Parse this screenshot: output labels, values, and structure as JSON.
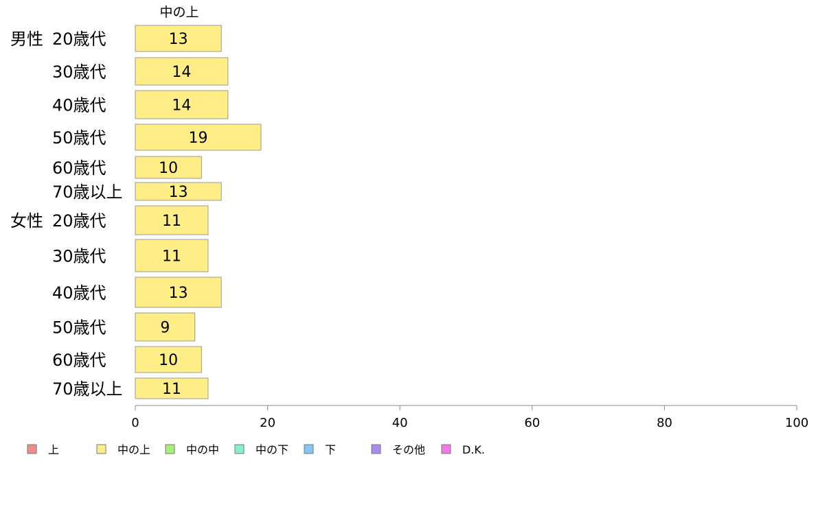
{
  "chart_data": {
    "type": "bar",
    "orientation": "horizontal",
    "series_header": "中の上",
    "groups": [
      {
        "label": "男性",
        "categories": [
          "20歳代",
          "30歳代",
          "40歳代",
          "50歳代",
          "60歳代",
          "70歳以上"
        ],
        "values": [
          13,
          14,
          14,
          19,
          10,
          13
        ]
      },
      {
        "label": "女性",
        "categories": [
          "20歳代",
          "30歳代",
          "40歳代",
          "50歳代",
          "60歳代",
          "70歳以上"
        ],
        "values": [
          11,
          11,
          13,
          9,
          10,
          11
        ]
      }
    ],
    "series": [
      {
        "name": "中の上",
        "color": "#ffee88"
      }
    ],
    "xlim": [
      0,
      100
    ],
    "x_ticks": [
      "0",
      "20",
      "40",
      "60",
      "80",
      "100"
    ],
    "legend": {
      "position": "bottom",
      "items": [
        {
          "name": "上",
          "color": "#f08c8c"
        },
        {
          "name": "中の上",
          "color": "#ffee88"
        },
        {
          "name": "中の中",
          "color": "#a6f07a"
        },
        {
          "name": "中の下",
          "color": "#86f0c8"
        },
        {
          "name": "下",
          "color": "#86c6f0"
        },
        {
          "name": "その他",
          "color": "#a88cf0"
        },
        {
          "name": "D.K.",
          "color": "#f07ae6"
        }
      ]
    },
    "grid": false
  }
}
